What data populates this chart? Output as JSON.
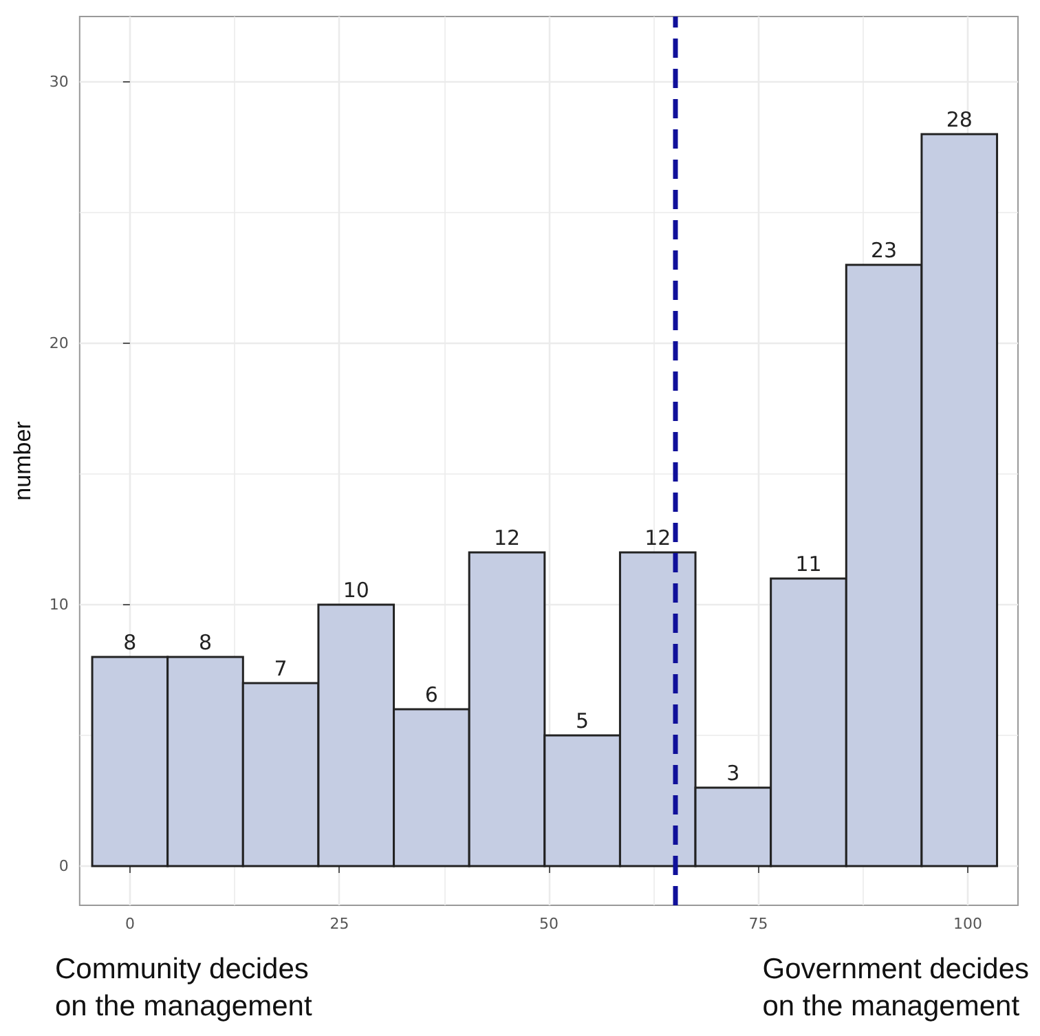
{
  "chart_data": {
    "type": "histogram",
    "ylabel": "number",
    "bins": [
      -4.5,
      4.5,
      13.5,
      22.5,
      31.5,
      40.5,
      49.5,
      58.5,
      67.5,
      76.5,
      85.5,
      94.5,
      103.5
    ],
    "values": [
      8,
      8,
      7,
      10,
      6,
      12,
      5,
      12,
      3,
      11,
      23,
      28
    ],
    "color": "#c5cde3",
    "data_labels": true,
    "xlim": [
      -6,
      106
    ],
    "xticks": [
      0,
      25,
      50,
      75,
      100
    ],
    "ylim": [
      -1.5,
      32.5
    ],
    "yticks": [
      0,
      10,
      20,
      30
    ],
    "grid": true,
    "ref_lines": [
      {
        "axis": "x",
        "value": 65,
        "color": "#10109a",
        "line_style": "dashed"
      }
    ],
    "annotations": [
      "Community decides\non the management",
      "Government decides\non the management"
    ]
  }
}
